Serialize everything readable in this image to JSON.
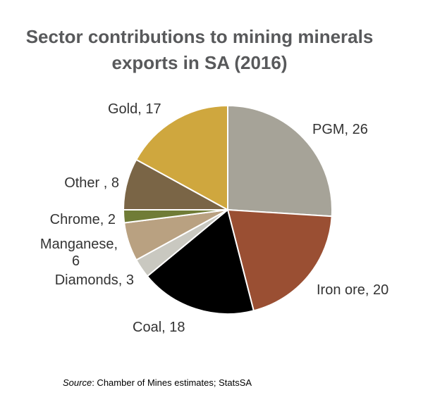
{
  "chart_data": {
    "type": "pie",
    "title_lines": [
      "Sector contributions to mining minerals",
      "exports in SA (2016)"
    ],
    "slices": [
      {
        "label": "PGM",
        "label_text": "PGM, 26",
        "value": 26,
        "color": "#a6a398"
      },
      {
        "label": "Iron ore",
        "label_text": "Iron ore, 20",
        "value": 20,
        "color": "#9a4f33"
      },
      {
        "label": "Coal",
        "label_text": "Coal, 18",
        "value": 18,
        "color": "#000000"
      },
      {
        "label": "Diamonds",
        "label_text": "Diamonds, 3",
        "value": 3,
        "color": "#c9c8c0"
      },
      {
        "label": "Manganese",
        "label_text": [
          "Manganese,",
          "6"
        ],
        "value": 6,
        "color": "#b9a181"
      },
      {
        "label": "Chrome",
        "label_text": "Chrome, 2",
        "value": 2,
        "color": "#707c37"
      },
      {
        "label": "Other",
        "label_text": "Other , 8",
        "value": 8,
        "color": "#7a6546"
      },
      {
        "label": "Gold",
        "label_text": "Gold, 17",
        "value": 17,
        "color": "#cfa73e"
      }
    ]
  },
  "source": {
    "prefix": "Source",
    "text": ": Chamber of Mines estimates; StatsSA"
  }
}
